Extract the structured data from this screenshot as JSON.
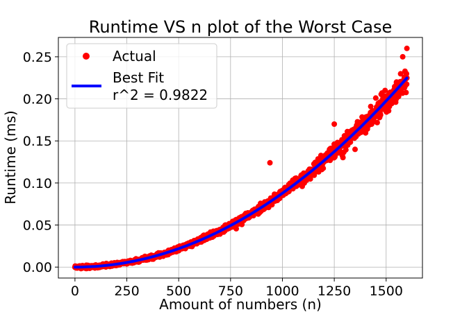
{
  "chart_data": {
    "type": "scatter",
    "title": "Runtime VS n plot of the Worst Case",
    "xlabel": "Amount of numbers (n)",
    "ylabel": "Runtime (ms)",
    "xlim": [
      -80,
      1675
    ],
    "ylim": [
      -0.013,
      0.273
    ],
    "xticks": [
      0,
      250,
      500,
      750,
      1000,
      1250,
      1500
    ],
    "yticks": [
      "0.00",
      "0.05",
      "0.10",
      "0.15",
      "0.20",
      "0.25"
    ],
    "grid": true,
    "legend_position": "top-left",
    "series": [
      {
        "name": "Actual",
        "kind": "scatter",
        "color": "#ff0000",
        "x_range": [
          0,
          1600
        ],
        "count": 1600,
        "points": [
          [
            0,
            0.0
          ],
          [
            100,
            0.001
          ],
          [
            200,
            0.003
          ],
          [
            300,
            0.008
          ],
          [
            400,
            0.014
          ],
          [
            500,
            0.022
          ],
          [
            600,
            0.032
          ],
          [
            700,
            0.044
          ],
          [
            800,
            0.057
          ],
          [
            900,
            0.072
          ],
          [
            940,
            0.124
          ],
          [
            1000,
            0.089
          ],
          [
            1100,
            0.107
          ],
          [
            1200,
            0.127
          ],
          [
            1250,
            0.17
          ],
          [
            1300,
            0.149
          ],
          [
            1350,
            0.14
          ],
          [
            1400,
            0.172
          ],
          [
            1450,
            0.201
          ],
          [
            1500,
            0.198
          ],
          [
            1550,
            0.22
          ],
          [
            1580,
            0.25
          ],
          [
            1600,
            0.26
          ]
        ]
      },
      {
        "name": "Best Fit",
        "kind": "line",
        "color": "#0000ff",
        "x_range": [
          0,
          1600
        ],
        "points": [
          [
            0,
            0.0
          ],
          [
            200,
            0.0035
          ],
          [
            400,
            0.014
          ],
          [
            600,
            0.0316
          ],
          [
            800,
            0.0562
          ],
          [
            1000,
            0.0878
          ],
          [
            1200,
            0.1265
          ],
          [
            1400,
            0.1721
          ],
          [
            1600,
            0.2248
          ]
        ]
      }
    ],
    "legend": {
      "entries": [
        "Actual",
        "Best Fit",
        "r^2 = 0.9822"
      ]
    }
  }
}
